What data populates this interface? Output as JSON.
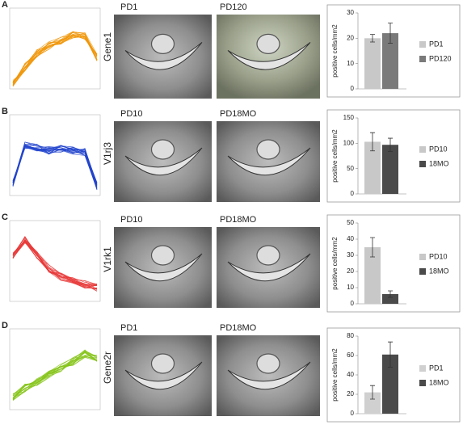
{
  "panels": [
    {
      "letter": "A",
      "gene": "Gene1",
      "image_labels": [
        "PD1",
        "PD120"
      ]
    },
    {
      "letter": "B",
      "gene": "V1rj3",
      "image_labels": [
        "PD10",
        "PD18MO"
      ]
    },
    {
      "letter": "C",
      "gene": "V1rk1",
      "image_labels": [
        "PD10",
        "PD18MO"
      ]
    },
    {
      "letter": "D",
      "gene": "Gene2r",
      "image_labels": [
        "PD1",
        "PD18MO"
      ]
    }
  ],
  "chart_data": [
    {
      "type": "bar",
      "y_label": "positive cells/mm2",
      "categories": [
        "PD1",
        "PD120"
      ],
      "values": [
        20,
        22
      ],
      "errors": [
        1.5,
        4
      ],
      "colors": [
        "#c8c8c8",
        "#7a7a7a"
      ],
      "ylim": [
        0,
        30
      ],
      "yticks": [
        0,
        10,
        20,
        30
      ]
    },
    {
      "type": "bar",
      "y_label": "positive cells/mm2",
      "categories": [
        "PD10",
        "18MO"
      ],
      "values": [
        103,
        97
      ],
      "errors": [
        18,
        13
      ],
      "colors": [
        "#c8c8c8",
        "#4a4a4a"
      ],
      "ylim": [
        0,
        150
      ],
      "yticks": [
        0,
        50,
        100,
        150
      ]
    },
    {
      "type": "bar",
      "y_label": "positive cells/mm2",
      "categories": [
        "PD10",
        "18MO"
      ],
      "values": [
        35,
        6
      ],
      "errors": [
        6,
        2
      ],
      "colors": [
        "#c8c8c8",
        "#4a4a4a"
      ],
      "ylim": [
        0,
        50
      ],
      "yticks": [
        0,
        10,
        20,
        30,
        40,
        50
      ]
    },
    {
      "type": "bar",
      "y_label": "positive cells/mm2",
      "categories": [
        "PD1",
        "18MO"
      ],
      "values": [
        22,
        61
      ],
      "errors": [
        7,
        13
      ],
      "colors": [
        "#d0d0d0",
        "#4a4a4a"
      ],
      "ylim": [
        0,
        80
      ],
      "yticks": [
        0,
        20,
        40,
        60,
        80
      ]
    }
  ]
}
